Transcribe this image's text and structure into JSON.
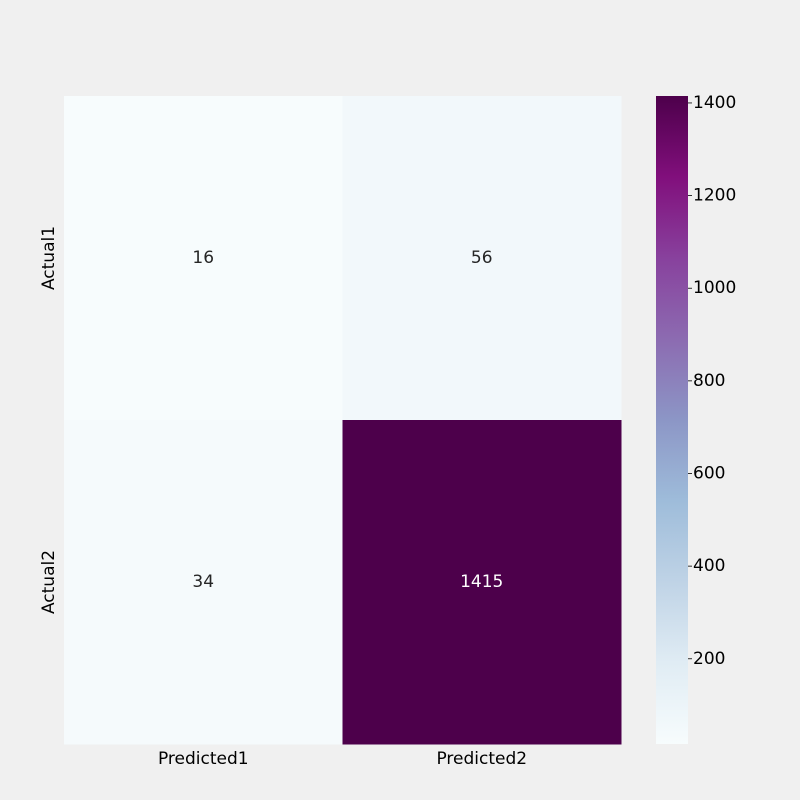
{
  "chart_data": {
    "type": "heatmap",
    "title": "",
    "xlabel": "",
    "ylabel": "",
    "x_categories": [
      "Predicted1",
      "Predicted2"
    ],
    "y_categories": [
      "Actual1",
      "Actual2"
    ],
    "values": [
      [
        16,
        56
      ],
      [
        34,
        1415
      ]
    ],
    "colormap": "BuPu",
    "colorbar": {
      "min": 16,
      "max": 1415,
      "ticks": [
        200,
        400,
        600,
        800,
        1000,
        1200,
        1400
      ]
    }
  },
  "colors": {
    "background": "#f0f0f0",
    "light_text": "#ffffff",
    "dark_text": "#262626"
  }
}
